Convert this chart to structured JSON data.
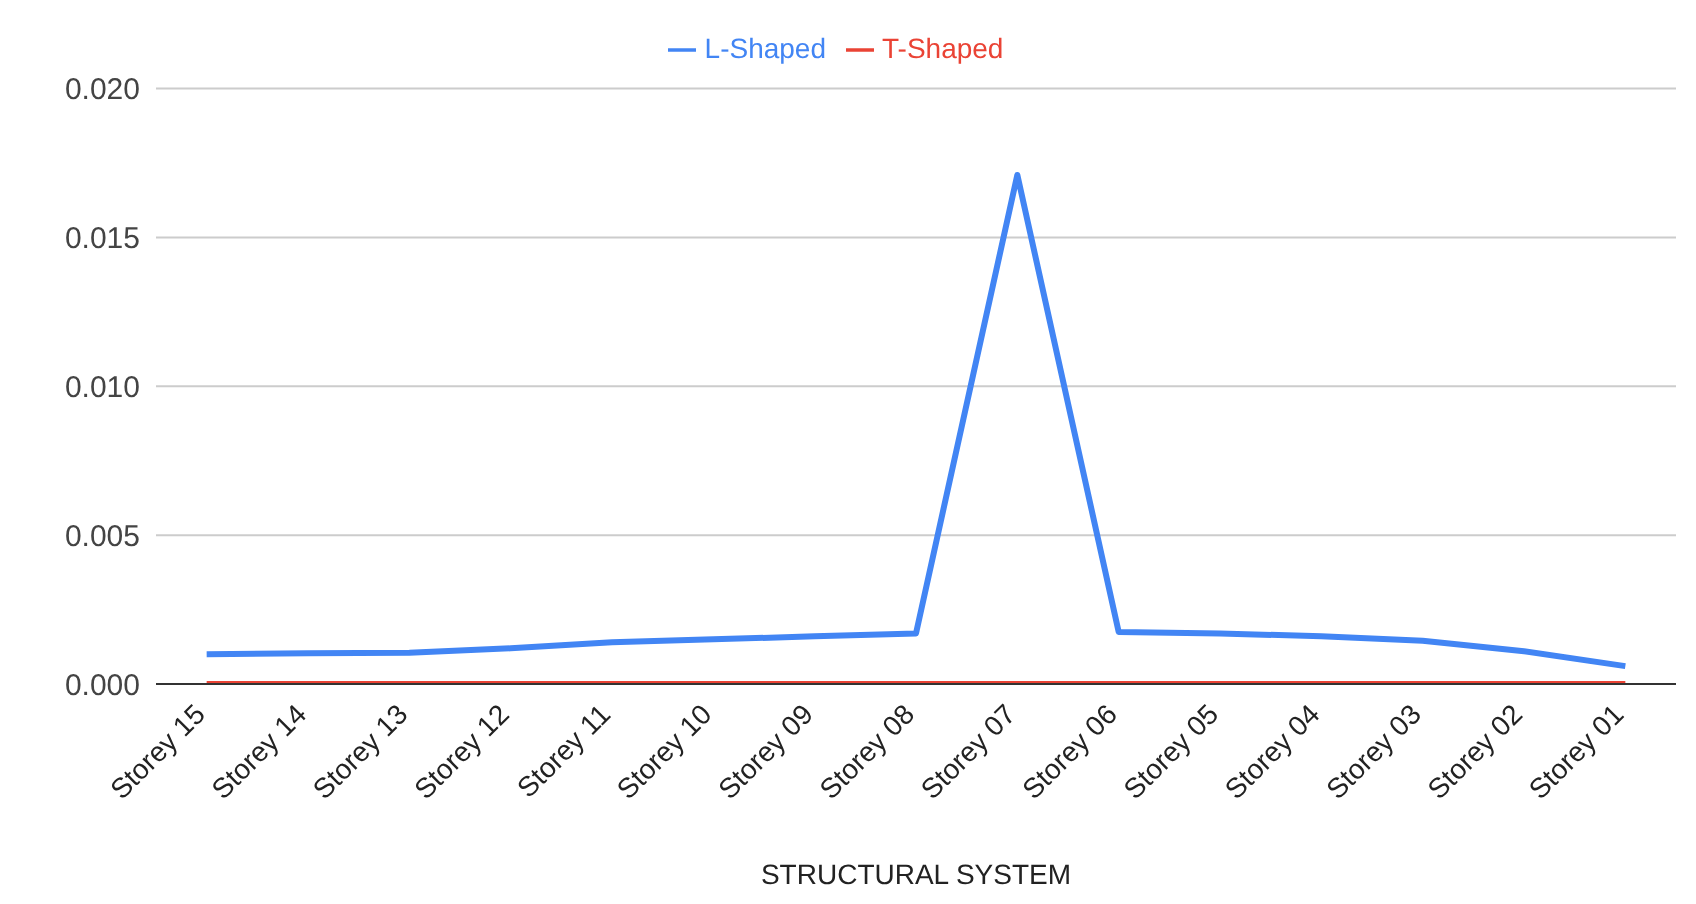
{
  "chart_data": {
    "type": "line",
    "xlabel": "STRUCTURAL SYSTEM",
    "categories": [
      "Storey 15",
      "Storey 14",
      "Storey 13",
      "Storey 12",
      "Storey 11",
      "Storey 10",
      "Storey 09",
      "Storey 08",
      "Storey 07",
      "Storey 06",
      "Storey 05",
      "Storey 04",
      "Storey 03",
      "Storey 02",
      "Storey 01"
    ],
    "series": [
      {
        "name": "L-Shaped",
        "color": "#4285f4",
        "values": [
          0.001,
          0.00103,
          0.00105,
          0.0012,
          0.0014,
          0.0015,
          0.0016,
          0.0017,
          0.0171,
          0.00175,
          0.0017,
          0.0016,
          0.00145,
          0.0011,
          0.0006
        ]
      },
      {
        "name": "T-Shaped",
        "color": "#ea4335",
        "values": [
          0,
          0,
          0,
          0,
          0,
          0,
          0,
          0,
          0,
          0,
          0,
          0,
          0,
          0,
          0
        ]
      }
    ],
    "ylim": [
      0,
      0.02
    ],
    "yticks": [
      {
        "value": 0,
        "label": "0.000"
      },
      {
        "value": 0.005,
        "label": "0.005"
      },
      {
        "value": 0.01,
        "label": "0.010"
      },
      {
        "value": 0.015,
        "label": "0.015"
      },
      {
        "value": 0.02,
        "label": "0.020"
      }
    ],
    "grid": "y",
    "legend": "top",
    "marker": "none",
    "line_style": "solid"
  }
}
